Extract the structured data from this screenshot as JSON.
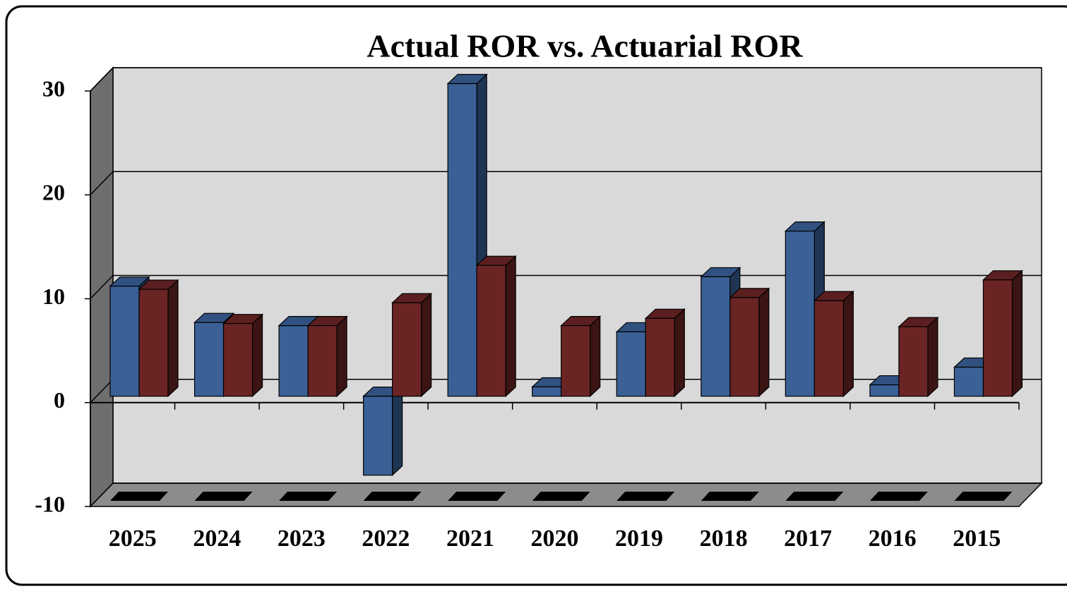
{
  "chart_data": {
    "type": "bar3d",
    "title": "Actual ROR vs. Actuarial ROR",
    "categories": [
      "2025",
      "2024",
      "2023",
      "2022",
      "2021",
      "2020",
      "2019",
      "2018",
      "2017",
      "2016",
      "2015"
    ],
    "series": [
      {
        "color": "#3a6096",
        "values": [
          10.6,
          7.1,
          6.8,
          -7.6,
          30.1,
          0.9,
          6.2,
          11.5,
          15.9,
          1.1,
          2.8
        ]
      },
      {
        "color": "#6b2424",
        "values": [
          10.3,
          7.0,
          6.8,
          9.0,
          12.6,
          6.8,
          7.5,
          9.5,
          9.2,
          6.7,
          11.2
        ]
      }
    ],
    "ylim": [
      -10,
      30
    ],
    "yticks": [
      -10,
      0,
      10,
      20,
      30
    ],
    "grid": true
  }
}
